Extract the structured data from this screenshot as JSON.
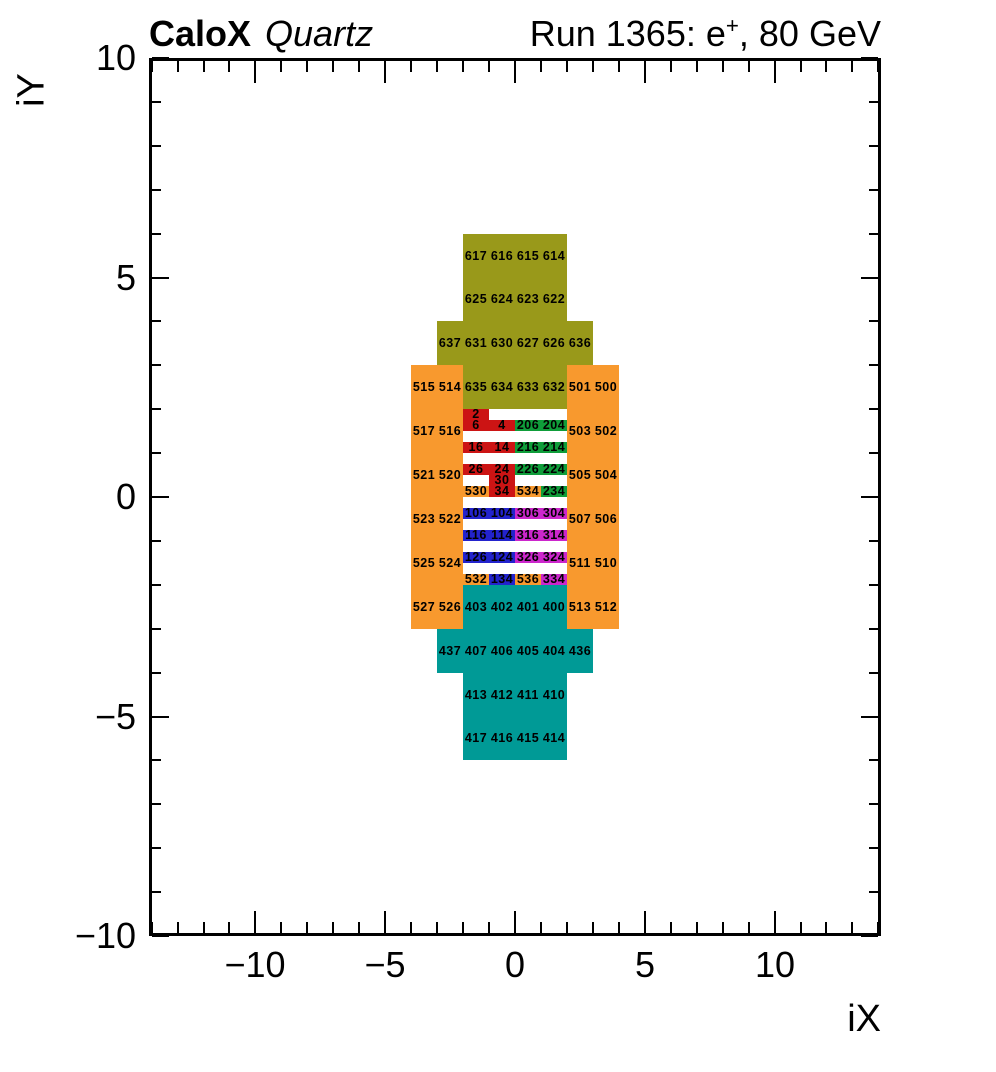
{
  "chart_data": {
    "type": "heatmap",
    "description": "Calorimeter channel map: colored detector cells labeled with channel IDs on an iX/iY grid",
    "title": {
      "experiment": "CaloX",
      "detector": "Quartz",
      "run_prefix": "Run 1365: e",
      "run_sup": "+",
      "run_suffix": ", 80 GeV"
    },
    "axes": {
      "x": {
        "title": "iX",
        "min": -14.1,
        "max": 14.1,
        "minor_step": 1,
        "major_ticks": [
          -10,
          -5,
          0,
          5,
          10
        ],
        "major_labels": [
          "−10",
          "−5",
          "0",
          "5",
          "10"
        ]
      },
      "y": {
        "title": "iY",
        "min": -10,
        "max": 10,
        "minor_step": 1,
        "major_ticks": [
          -10,
          -5,
          0,
          5,
          10
        ],
        "major_labels": [
          "−10",
          "−5",
          "0",
          "5",
          "10"
        ]
      }
    },
    "palette": {
      "olive": "#99991a",
      "orange": "#f8992e",
      "red": "#cc1414",
      "green": "#0f9d3a",
      "blue": "#2323cd",
      "magenta": "#cc26cc",
      "teal": "#009a96",
      "frame": "#000000",
      "background": "#ffffff"
    },
    "cells": [
      {
        "ch": "617",
        "x": [
          -2,
          -1
        ],
        "y": [
          5,
          6
        ],
        "c": "olive"
      },
      {
        "ch": "616",
        "x": [
          -1,
          0
        ],
        "y": [
          5,
          6
        ],
        "c": "olive"
      },
      {
        "ch": "615",
        "x": [
          0,
          1
        ],
        "y": [
          5,
          6
        ],
        "c": "olive"
      },
      {
        "ch": "614",
        "x": [
          1,
          2
        ],
        "y": [
          5,
          6
        ],
        "c": "olive"
      },
      {
        "ch": "625",
        "x": [
          -2,
          -1
        ],
        "y": [
          4,
          5
        ],
        "c": "olive"
      },
      {
        "ch": "624",
        "x": [
          -1,
          0
        ],
        "y": [
          4,
          5
        ],
        "c": "olive"
      },
      {
        "ch": "623",
        "x": [
          0,
          1
        ],
        "y": [
          4,
          5
        ],
        "c": "olive"
      },
      {
        "ch": "622",
        "x": [
          1,
          2
        ],
        "y": [
          4,
          5
        ],
        "c": "olive"
      },
      {
        "ch": "637",
        "x": [
          -3,
          -2
        ],
        "y": [
          3,
          4
        ],
        "c": "olive"
      },
      {
        "ch": "631",
        "x": [
          -2,
          -1
        ],
        "y": [
          3,
          4
        ],
        "c": "olive"
      },
      {
        "ch": "630",
        "x": [
          -1,
          0
        ],
        "y": [
          3,
          4
        ],
        "c": "olive"
      },
      {
        "ch": "627",
        "x": [
          0,
          1
        ],
        "y": [
          3,
          4
        ],
        "c": "olive"
      },
      {
        "ch": "626",
        "x": [
          1,
          2
        ],
        "y": [
          3,
          4
        ],
        "c": "olive"
      },
      {
        "ch": "636",
        "x": [
          2,
          3
        ],
        "y": [
          3,
          4
        ],
        "c": "olive"
      },
      {
        "ch": "635",
        "x": [
          -2,
          -1
        ],
        "y": [
          2,
          3
        ],
        "c": "olive"
      },
      {
        "ch": "634",
        "x": [
          -1,
          0
        ],
        "y": [
          2,
          3
        ],
        "c": "olive"
      },
      {
        "ch": "633",
        "x": [
          0,
          1
        ],
        "y": [
          2,
          3
        ],
        "c": "olive"
      },
      {
        "ch": "632",
        "x": [
          1,
          2
        ],
        "y": [
          2,
          3
        ],
        "c": "olive"
      },
      {
        "ch": "515",
        "x": [
          -4,
          -3
        ],
        "y": [
          2,
          3
        ],
        "c": "orange"
      },
      {
        "ch": "514",
        "x": [
          -3,
          -2
        ],
        "y": [
          2,
          3
        ],
        "c": "orange"
      },
      {
        "ch": "517",
        "x": [
          -4,
          -3
        ],
        "y": [
          1,
          2
        ],
        "c": "orange"
      },
      {
        "ch": "516",
        "x": [
          -3,
          -2
        ],
        "y": [
          1,
          2
        ],
        "c": "orange"
      },
      {
        "ch": "521",
        "x": [
          -4,
          -3
        ],
        "y": [
          0,
          1
        ],
        "c": "orange"
      },
      {
        "ch": "520",
        "x": [
          -3,
          -2
        ],
        "y": [
          0,
          1
        ],
        "c": "orange"
      },
      {
        "ch": "523",
        "x": [
          -4,
          -3
        ],
        "y": [
          -1,
          0
        ],
        "c": "orange"
      },
      {
        "ch": "522",
        "x": [
          -3,
          -2
        ],
        "y": [
          -1,
          0
        ],
        "c": "orange"
      },
      {
        "ch": "525",
        "x": [
          -4,
          -3
        ],
        "y": [
          -2,
          -1
        ],
        "c": "orange"
      },
      {
        "ch": "524",
        "x": [
          -3,
          -2
        ],
        "y": [
          -2,
          -1
        ],
        "c": "orange"
      },
      {
        "ch": "527",
        "x": [
          -4,
          -3
        ],
        "y": [
          -3,
          -2
        ],
        "c": "orange"
      },
      {
        "ch": "526",
        "x": [
          -3,
          -2
        ],
        "y": [
          -3,
          -2
        ],
        "c": "orange"
      },
      {
        "ch": "501",
        "x": [
          2,
          3
        ],
        "y": [
          2,
          3
        ],
        "c": "orange"
      },
      {
        "ch": "500",
        "x": [
          3,
          4
        ],
        "y": [
          2,
          3
        ],
        "c": "orange"
      },
      {
        "ch": "503",
        "x": [
          2,
          3
        ],
        "y": [
          1,
          2
        ],
        "c": "orange"
      },
      {
        "ch": "502",
        "x": [
          3,
          4
        ],
        "y": [
          1,
          2
        ],
        "c": "orange"
      },
      {
        "ch": "505",
        "x": [
          2,
          3
        ],
        "y": [
          0,
          1
        ],
        "c": "orange"
      },
      {
        "ch": "504",
        "x": [
          3,
          4
        ],
        "y": [
          0,
          1
        ],
        "c": "orange"
      },
      {
        "ch": "507",
        "x": [
          2,
          3
        ],
        "y": [
          -1,
          0
        ],
        "c": "orange"
      },
      {
        "ch": "506",
        "x": [
          3,
          4
        ],
        "y": [
          -1,
          0
        ],
        "c": "orange"
      },
      {
        "ch": "511",
        "x": [
          2,
          3
        ],
        "y": [
          -2,
          -1
        ],
        "c": "orange"
      },
      {
        "ch": "510",
        "x": [
          3,
          4
        ],
        "y": [
          -2,
          -1
        ],
        "c": "orange"
      },
      {
        "ch": "513",
        "x": [
          2,
          3
        ],
        "y": [
          -3,
          -2
        ],
        "c": "orange"
      },
      {
        "ch": "512",
        "x": [
          3,
          4
        ],
        "y": [
          -3,
          -2
        ],
        "c": "orange"
      },
      {
        "ch": "2",
        "x": [
          -2,
          -1
        ],
        "y": [
          1.75,
          2
        ],
        "c": "red"
      },
      {
        "ch": "6",
        "x": [
          -2,
          -1
        ],
        "y": [
          1.5,
          1.75
        ],
        "c": "red"
      },
      {
        "ch": "4",
        "x": [
          -1,
          0
        ],
        "y": [
          1.5,
          1.75
        ],
        "c": "red"
      },
      {
        "ch": "16",
        "x": [
          -2,
          -1
        ],
        "y": [
          1,
          1.25
        ],
        "c": "red"
      },
      {
        "ch": "14",
        "x": [
          -1,
          0
        ],
        "y": [
          1,
          1.25
        ],
        "c": "red"
      },
      {
        "ch": "26",
        "x": [
          -2,
          -1
        ],
        "y": [
          0.5,
          0.75
        ],
        "c": "red"
      },
      {
        "ch": "24",
        "x": [
          -1,
          0
        ],
        "y": [
          0.5,
          0.75
        ],
        "c": "red"
      },
      {
        "ch": "30",
        "x": [
          -1,
          0
        ],
        "y": [
          0.25,
          0.5
        ],
        "c": "red"
      },
      {
        "ch": "34",
        "x": [
          -1,
          0
        ],
        "y": [
          0,
          0.25
        ],
        "c": "red"
      },
      {
        "ch": "206",
        "x": [
          0,
          1
        ],
        "y": [
          1.5,
          1.75
        ],
        "c": "green"
      },
      {
        "ch": "204",
        "x": [
          1,
          2
        ],
        "y": [
          1.5,
          1.75
        ],
        "c": "green"
      },
      {
        "ch": "216",
        "x": [
          0,
          1
        ],
        "y": [
          1,
          1.25
        ],
        "c": "green"
      },
      {
        "ch": "214",
        "x": [
          1,
          2
        ],
        "y": [
          1,
          1.25
        ],
        "c": "green"
      },
      {
        "ch": "226",
        "x": [
          0,
          1
        ],
        "y": [
          0.5,
          0.75
        ],
        "c": "green"
      },
      {
        "ch": "224",
        "x": [
          1,
          2
        ],
        "y": [
          0.5,
          0.75
        ],
        "c": "green"
      },
      {
        "ch": "234",
        "x": [
          1,
          2
        ],
        "y": [
          0,
          0.25
        ],
        "c": "green"
      },
      {
        "ch": "530",
        "x": [
          -2,
          -1
        ],
        "y": [
          0,
          0.25
        ],
        "c": "orange"
      },
      {
        "ch": "534",
        "x": [
          0,
          1
        ],
        "y": [
          0,
          0.25
        ],
        "c": "orange"
      },
      {
        "ch": "532",
        "x": [
          -2,
          -1
        ],
        "y": [
          -2,
          -1.75
        ],
        "c": "orange"
      },
      {
        "ch": "536",
        "x": [
          0,
          1
        ],
        "y": [
          -2,
          -1.75
        ],
        "c": "orange"
      },
      {
        "ch": "106",
        "x": [
          -2,
          -1
        ],
        "y": [
          -0.5,
          -0.25
        ],
        "c": "blue"
      },
      {
        "ch": "104",
        "x": [
          -1,
          0
        ],
        "y": [
          -0.5,
          -0.25
        ],
        "c": "blue"
      },
      {
        "ch": "116",
        "x": [
          -2,
          -1
        ],
        "y": [
          -1,
          -0.75
        ],
        "c": "blue"
      },
      {
        "ch": "114",
        "x": [
          -1,
          0
        ],
        "y": [
          -1,
          -0.75
        ],
        "c": "blue"
      },
      {
        "ch": "126",
        "x": [
          -2,
          -1
        ],
        "y": [
          -1.5,
          -1.25
        ],
        "c": "blue"
      },
      {
        "ch": "124",
        "x": [
          -1,
          0
        ],
        "y": [
          -1.5,
          -1.25
        ],
        "c": "blue"
      },
      {
        "ch": "134",
        "x": [
          -1,
          0
        ],
        "y": [
          -2,
          -1.75
        ],
        "c": "blue"
      },
      {
        "ch": "306",
        "x": [
          0,
          1
        ],
        "y": [
          -0.5,
          -0.25
        ],
        "c": "magenta"
      },
      {
        "ch": "304",
        "x": [
          1,
          2
        ],
        "y": [
          -0.5,
          -0.25
        ],
        "c": "magenta"
      },
      {
        "ch": "316",
        "x": [
          0,
          1
        ],
        "y": [
          -1,
          -0.75
        ],
        "c": "magenta"
      },
      {
        "ch": "314",
        "x": [
          1,
          2
        ],
        "y": [
          -1,
          -0.75
        ],
        "c": "magenta"
      },
      {
        "ch": "326",
        "x": [
          0,
          1
        ],
        "y": [
          -1.5,
          -1.25
        ],
        "c": "magenta"
      },
      {
        "ch": "324",
        "x": [
          1,
          2
        ],
        "y": [
          -1.5,
          -1.25
        ],
        "c": "magenta"
      },
      {
        "ch": "334",
        "x": [
          1,
          2
        ],
        "y": [
          -2,
          -1.75
        ],
        "c": "magenta"
      },
      {
        "ch": "403",
        "x": [
          -2,
          -1
        ],
        "y": [
          -3,
          -2
        ],
        "c": "teal"
      },
      {
        "ch": "402",
        "x": [
          -1,
          0
        ],
        "y": [
          -3,
          -2
        ],
        "c": "teal"
      },
      {
        "ch": "401",
        "x": [
          0,
          1
        ],
        "y": [
          -3,
          -2
        ],
        "c": "teal"
      },
      {
        "ch": "400",
        "x": [
          1,
          2
        ],
        "y": [
          -3,
          -2
        ],
        "c": "teal"
      },
      {
        "ch": "437",
        "x": [
          -3,
          -2
        ],
        "y": [
          -4,
          -3
        ],
        "c": "teal"
      },
      {
        "ch": "407",
        "x": [
          -2,
          -1
        ],
        "y": [
          -4,
          -3
        ],
        "c": "teal"
      },
      {
        "ch": "406",
        "x": [
          -1,
          0
        ],
        "y": [
          -4,
          -3
        ],
        "c": "teal"
      },
      {
        "ch": "405",
        "x": [
          0,
          1
        ],
        "y": [
          -4,
          -3
        ],
        "c": "teal"
      },
      {
        "ch": "404",
        "x": [
          1,
          2
        ],
        "y": [
          -4,
          -3
        ],
        "c": "teal"
      },
      {
        "ch": "436",
        "x": [
          2,
          3
        ],
        "y": [
          -4,
          -3
        ],
        "c": "teal"
      },
      {
        "ch": "413",
        "x": [
          -2,
          -1
        ],
        "y": [
          -5,
          -4
        ],
        "c": "teal"
      },
      {
        "ch": "412",
        "x": [
          -1,
          0
        ],
        "y": [
          -5,
          -4
        ],
        "c": "teal"
      },
      {
        "ch": "411",
        "x": [
          0,
          1
        ],
        "y": [
          -5,
          -4
        ],
        "c": "teal"
      },
      {
        "ch": "410",
        "x": [
          1,
          2
        ],
        "y": [
          -5,
          -4
        ],
        "c": "teal"
      },
      {
        "ch": "417",
        "x": [
          -2,
          -1
        ],
        "y": [
          -6,
          -5
        ],
        "c": "teal"
      },
      {
        "ch": "416",
        "x": [
          -1,
          0
        ],
        "y": [
          -6,
          -5
        ],
        "c": "teal"
      },
      {
        "ch": "415",
        "x": [
          0,
          1
        ],
        "y": [
          -6,
          -5
        ],
        "c": "teal"
      },
      {
        "ch": "414",
        "x": [
          1,
          2
        ],
        "y": [
          -6,
          -5
        ],
        "c": "teal"
      }
    ]
  }
}
